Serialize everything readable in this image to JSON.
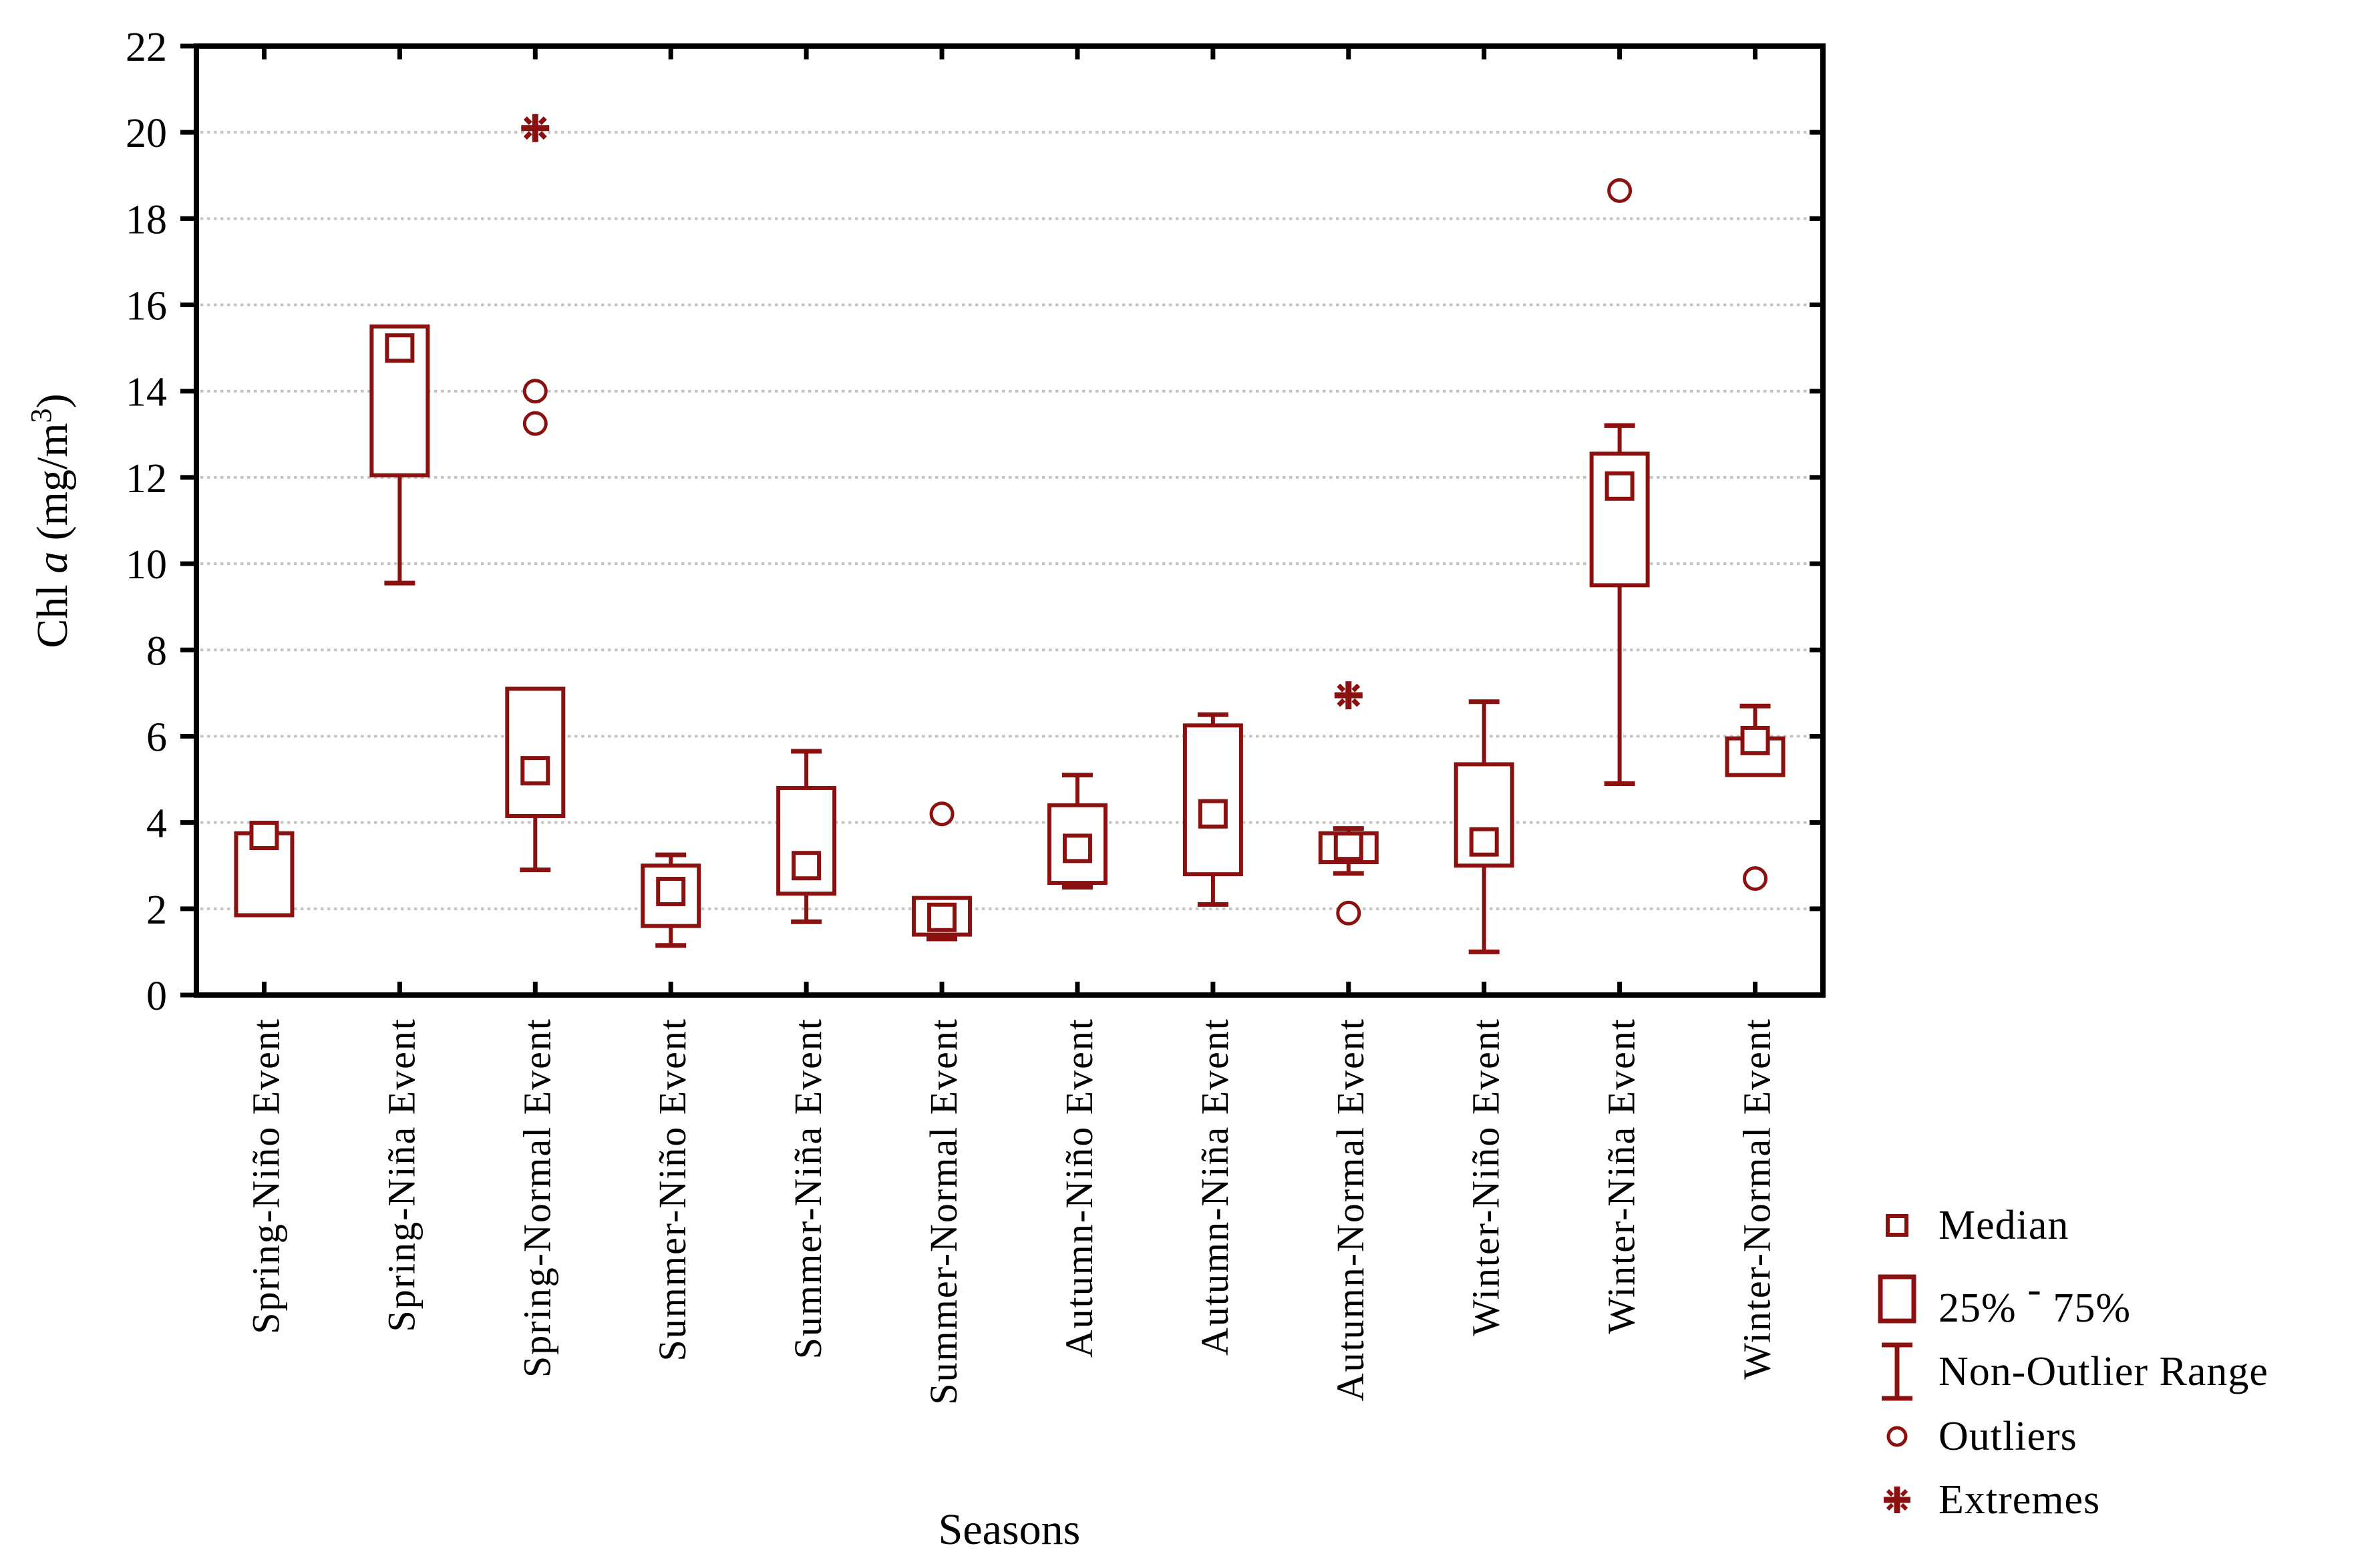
{
  "figure": {
    "background": "#ffffff",
    "accent_color": "#8B1111",
    "grid_color": "#c4c4c4",
    "axis_color": "#000000",
    "text_color": "#000000"
  },
  "y_axis": {
    "title_parts": {
      "pre": "Chl ",
      "italic": "a",
      "mid": " (mg/m",
      "sup": "3",
      "post": ")"
    },
    "min": 0,
    "max": 22,
    "tick_step": 2,
    "tick_labels": [
      "0",
      "2",
      "4",
      "6",
      "8",
      "10",
      "12",
      "14",
      "16",
      "18",
      "20",
      "22"
    ]
  },
  "x_axis": {
    "title": "Seasons"
  },
  "legend": {
    "items": [
      {
        "name": "median",
        "label": "Median"
      },
      {
        "name": "box",
        "label_pre": "25% ",
        "label_sup": "-",
        "label_post": " 75%"
      },
      {
        "name": "non-outlier-range",
        "label": "Non-Outlier Range"
      },
      {
        "name": "outliers",
        "label": "Outliers"
      },
      {
        "name": "extremes",
        "label": "Extremes"
      }
    ]
  },
  "chart_data": {
    "type": "box",
    "title": "",
    "xlabel": "Seasons",
    "ylabel": "Chl a (mg/m3)",
    "ylim": [
      0,
      22
    ],
    "ytick_step": 2,
    "grid": "horizontal-dotted",
    "legend_position": "bottom-right-outside",
    "categories": [
      "Spring-Niño Event",
      "Spring-Niña Event",
      "Spring-Normal Event",
      "Summer-Niño Event",
      "Summer-Niña Event",
      "Summer-Normal Event",
      "Autumn-Niño Event",
      "Autumn-Niña Event",
      "Autumn-Normal Event",
      "Winter-Niño Event",
      "Winter-Niña Event",
      "Winter-Normal Event"
    ],
    "boxes": [
      {
        "label": "Spring-Niño Event",
        "q1": 1.85,
        "median": 3.7,
        "q3": 3.75,
        "whisker_low": null,
        "whisker_high": null,
        "outliers": [],
        "extremes": []
      },
      {
        "label": "Spring-Niña Event",
        "q1": 12.05,
        "median": 15.0,
        "q3": 15.5,
        "whisker_low": 9.55,
        "whisker_high": null,
        "outliers": [],
        "extremes": []
      },
      {
        "label": "Spring-Normal Event",
        "q1": 4.15,
        "median": 5.2,
        "q3": 7.1,
        "whisker_low": 2.9,
        "whisker_high": null,
        "outliers": [
          13.25,
          14.0
        ],
        "extremes": [
          20.1
        ]
      },
      {
        "label": "Summer-Niño Event",
        "q1": 1.6,
        "median": 2.4,
        "q3": 3.0,
        "whisker_low": 1.15,
        "whisker_high": 3.25,
        "outliers": [],
        "extremes": []
      },
      {
        "label": "Summer-Niña Event",
        "q1": 2.35,
        "median": 3.0,
        "q3": 4.8,
        "whisker_low": 1.7,
        "whisker_high": 5.65,
        "outliers": [],
        "extremes": []
      },
      {
        "label": "Summer-Normal Event",
        "q1": 1.4,
        "median": 1.8,
        "q3": 2.25,
        "whisker_low": 1.3,
        "whisker_high": null,
        "outliers": [
          4.2
        ],
        "extremes": []
      },
      {
        "label": "Autumn-Niño Event",
        "q1": 2.6,
        "median": 3.4,
        "q3": 4.4,
        "whisker_low": 2.5,
        "whisker_high": 5.1,
        "outliers": [],
        "extremes": []
      },
      {
        "label": "Autumn-Niña Event",
        "q1": 2.8,
        "median": 4.2,
        "q3": 6.25,
        "whisker_low": 2.1,
        "whisker_high": 6.5,
        "outliers": [],
        "extremes": []
      },
      {
        "label": "Autumn-Normal Event",
        "q1": 3.08,
        "median": 3.45,
        "q3": 3.75,
        "whisker_low": 2.82,
        "whisker_high": 3.86,
        "outliers": [
          1.9
        ],
        "extremes": [
          6.95
        ]
      },
      {
        "label": "Winter-Niño Event",
        "q1": 3.0,
        "median": 3.55,
        "q3": 5.35,
        "whisker_low": 1.0,
        "whisker_high": 6.8,
        "outliers": [],
        "extremes": []
      },
      {
        "label": "Winter-Niña Event",
        "q1": 9.5,
        "median": 11.8,
        "q3": 12.55,
        "whisker_low": 4.9,
        "whisker_high": 13.2,
        "outliers": [
          18.65
        ],
        "extremes": []
      },
      {
        "label": "Winter-Normal Event",
        "q1": 5.1,
        "median": 5.9,
        "q3": 5.95,
        "whisker_low": null,
        "whisker_high": 6.7,
        "outliers": [
          2.7
        ],
        "extremes": []
      }
    ]
  }
}
